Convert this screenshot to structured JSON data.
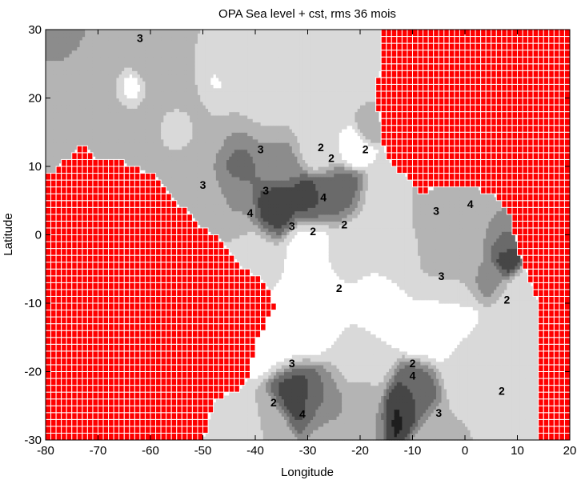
{
  "chart_data": {
    "type": "heatmap",
    "title": "OPA Sea level + cst, rms 36 mois",
    "xlabel": "Longitude",
    "ylabel": "Latitude",
    "xlim": [
      -80,
      20
    ],
    "ylim": [
      -30,
      30
    ],
    "xticks": [
      -80,
      -70,
      -60,
      -50,
      -40,
      -30,
      -20,
      -10,
      0,
      10,
      20
    ],
    "yticks": [
      -30,
      -20,
      -10,
      0,
      10,
      20,
      30
    ],
    "grid": false,
    "land_color": "#ff0000",
    "levels_colors": {
      "1": "#ffffff",
      "2": "#d9d9d9",
      "3": "#b4b4b4",
      "4": "#8c8c8c",
      "5": "#6a6a6a",
      "6": "#464646",
      "7": "#1e1e1e"
    },
    "contour_labels": [
      {
        "lon": -62,
        "lat": 28.8,
        "text": "3"
      },
      {
        "lon": -39,
        "lat": 12.5,
        "text": "3"
      },
      {
        "lon": -38,
        "lat": 6.5,
        "text": "3"
      },
      {
        "lon": -27,
        "lat": 5.5,
        "text": "4"
      },
      {
        "lon": -41,
        "lat": 3.2,
        "text": "4"
      },
      {
        "lon": -33,
        "lat": 1.3,
        "text": "3"
      },
      {
        "lon": -29,
        "lat": 0.5,
        "text": "2"
      },
      {
        "lon": -23,
        "lat": 1.5,
        "text": "2"
      },
      {
        "lon": -27.5,
        "lat": 12.8,
        "text": "2"
      },
      {
        "lon": -19,
        "lat": 12.5,
        "text": "2"
      },
      {
        "lon": -25.5,
        "lat": 11.2,
        "text": "2"
      },
      {
        "lon": -50,
        "lat": 7.3,
        "text": "3"
      },
      {
        "lon": -5.5,
        "lat": 3.5,
        "text": "3"
      },
      {
        "lon": 1,
        "lat": 4.5,
        "text": "4"
      },
      {
        "lon": -24,
        "lat": -7.8,
        "text": "2"
      },
      {
        "lon": -4.5,
        "lat": -6,
        "text": "3"
      },
      {
        "lon": 8,
        "lat": -9.5,
        "text": "2"
      },
      {
        "lon": -33,
        "lat": -18.8,
        "text": "3"
      },
      {
        "lon": -10,
        "lat": -18.8,
        "text": "2"
      },
      {
        "lon": -10,
        "lat": -20.6,
        "text": "4"
      },
      {
        "lon": -31,
        "lat": -26.2,
        "text": "4"
      },
      {
        "lon": -36.5,
        "lat": -24.5,
        "text": "2"
      },
      {
        "lon": -5,
        "lat": -26,
        "text": "3"
      },
      {
        "lon": 7,
        "lat": -22.8,
        "text": "2"
      }
    ],
    "field": [
      {
        "lon": -76,
        "lat": 27,
        "v": 4.2,
        "w": 4
      },
      {
        "lon": -60,
        "lat": 26,
        "v": 4.0,
        "w": 2
      },
      {
        "lon": -72,
        "lat": 20,
        "v": 3.2,
        "w": 6
      },
      {
        "lon": -64,
        "lat": 21.5,
        "v": 1.4,
        "w": 1.5
      },
      {
        "lon": -55,
        "lat": 20,
        "v": 3.2,
        "w": 4
      },
      {
        "lon": -45,
        "lat": 26,
        "v": 3.0,
        "w": 4
      },
      {
        "lon": -47,
        "lat": 23,
        "v": 1.5,
        "w": 2.5
      },
      {
        "lon": -38,
        "lat": 20,
        "v": 2.9,
        "w": 5
      },
      {
        "lon": -33,
        "lat": 27,
        "v": 3.0,
        "w": 4
      },
      {
        "lon": -50,
        "lat": 16,
        "v": 3.0,
        "w": 4
      },
      {
        "lon": -55,
        "lat": 16,
        "v": 1.6,
        "w": 1.6
      },
      {
        "lon": -43,
        "lat": 10.5,
        "v": 5.2,
        "w": 3.5
      },
      {
        "lon": -36,
        "lat": 10.5,
        "v": 4.5,
        "w": 3
      },
      {
        "lon": -24,
        "lat": 20,
        "v": 2.7,
        "w": 3.5
      },
      {
        "lon": -22,
        "lat": 14,
        "v": 1.6,
        "w": 2
      },
      {
        "lon": -19,
        "lat": 16.5,
        "v": 4.0,
        "w": 1.5
      },
      {
        "lon": -28,
        "lat": 14,
        "v": 2.6,
        "w": 3
      },
      {
        "lon": -36,
        "lat": 4,
        "v": 6.8,
        "w": 3
      },
      {
        "lon": -30,
        "lat": 4.5,
        "v": 6.4,
        "w": 2.5
      },
      {
        "lon": -25,
        "lat": 5.5,
        "v": 5.2,
        "w": 2.5
      },
      {
        "lon": -44,
        "lat": 4,
        "v": 4.0,
        "w": 3
      },
      {
        "lon": -52,
        "lat": 6,
        "v": 3.2,
        "w": 4
      },
      {
        "lon": -30,
        "lat": -1,
        "v": 1.5,
        "w": 3
      },
      {
        "lon": -22,
        "lat": -2,
        "v": 2.6,
        "w": 3
      },
      {
        "lon": -14,
        "lat": 0,
        "v": 2.8,
        "w": 4
      },
      {
        "lon": -6,
        "lat": 2,
        "v": 3.3,
        "w": 3
      },
      {
        "lon": 1,
        "lat": 0,
        "v": 3.4,
        "w": 3
      },
      {
        "lon": 6,
        "lat": -1,
        "v": 5.0,
        "w": 2
      },
      {
        "lon": 7,
        "lat": -3,
        "v": 6.5,
        "w": 1.6
      },
      {
        "lon": 4,
        "lat": -6,
        "v": 4.2,
        "w": 2
      },
      {
        "lon": -4,
        "lat": -5,
        "v": 3.1,
        "w": 4
      },
      {
        "lon": -10,
        "lat": -3,
        "v": 3.0,
        "w": 4
      },
      {
        "lon": -40,
        "lat": -4,
        "v": 2.5,
        "w": 4
      },
      {
        "lon": -30,
        "lat": -10,
        "v": 1.6,
        "w": 5
      },
      {
        "lon": -35,
        "lat": -14,
        "v": 1.5,
        "w": 4
      },
      {
        "lon": -15,
        "lat": -10,
        "v": 1.6,
        "w": 4
      },
      {
        "lon": -5,
        "lat": -13,
        "v": 1.5,
        "w": 4
      },
      {
        "lon": 10,
        "lat": -12,
        "v": 2.8,
        "w": 3
      },
      {
        "lon": -9,
        "lat": -15.5,
        "v": 1.0,
        "w": 1.5
      },
      {
        "lon": -47,
        "lat": -17,
        "v": 1.0,
        "w": 1.2
      },
      {
        "lon": -32,
        "lat": -23,
        "v": 6.5,
        "w": 3
      },
      {
        "lon": -27,
        "lat": -24,
        "v": 5.0,
        "w": 3
      },
      {
        "lon": -12,
        "lat": -25,
        "v": 7.2,
        "w": 2.5
      },
      {
        "lon": -9,
        "lat": -23,
        "v": 5.5,
        "w": 3
      },
      {
        "lon": -20,
        "lat": -25,
        "v": 4.0,
        "w": 3
      },
      {
        "lon": -20,
        "lat": -20,
        "v": 2.7,
        "w": 4
      },
      {
        "lon": 6,
        "lat": -25,
        "v": 3.0,
        "w": 3
      },
      {
        "lon": 1,
        "lat": -20,
        "v": 2.4,
        "w": 4
      },
      {
        "lon": -46,
        "lat": -27,
        "v": 2.6,
        "w": 3
      },
      {
        "lon": -38,
        "lat": -28,
        "v": 3.0,
        "w": 3
      },
      {
        "lon": -25,
        "lat": -29,
        "v": 3.6,
        "w": 3
      },
      {
        "lon": -5,
        "lat": -29,
        "v": 3.2,
        "w": 3
      }
    ]
  }
}
